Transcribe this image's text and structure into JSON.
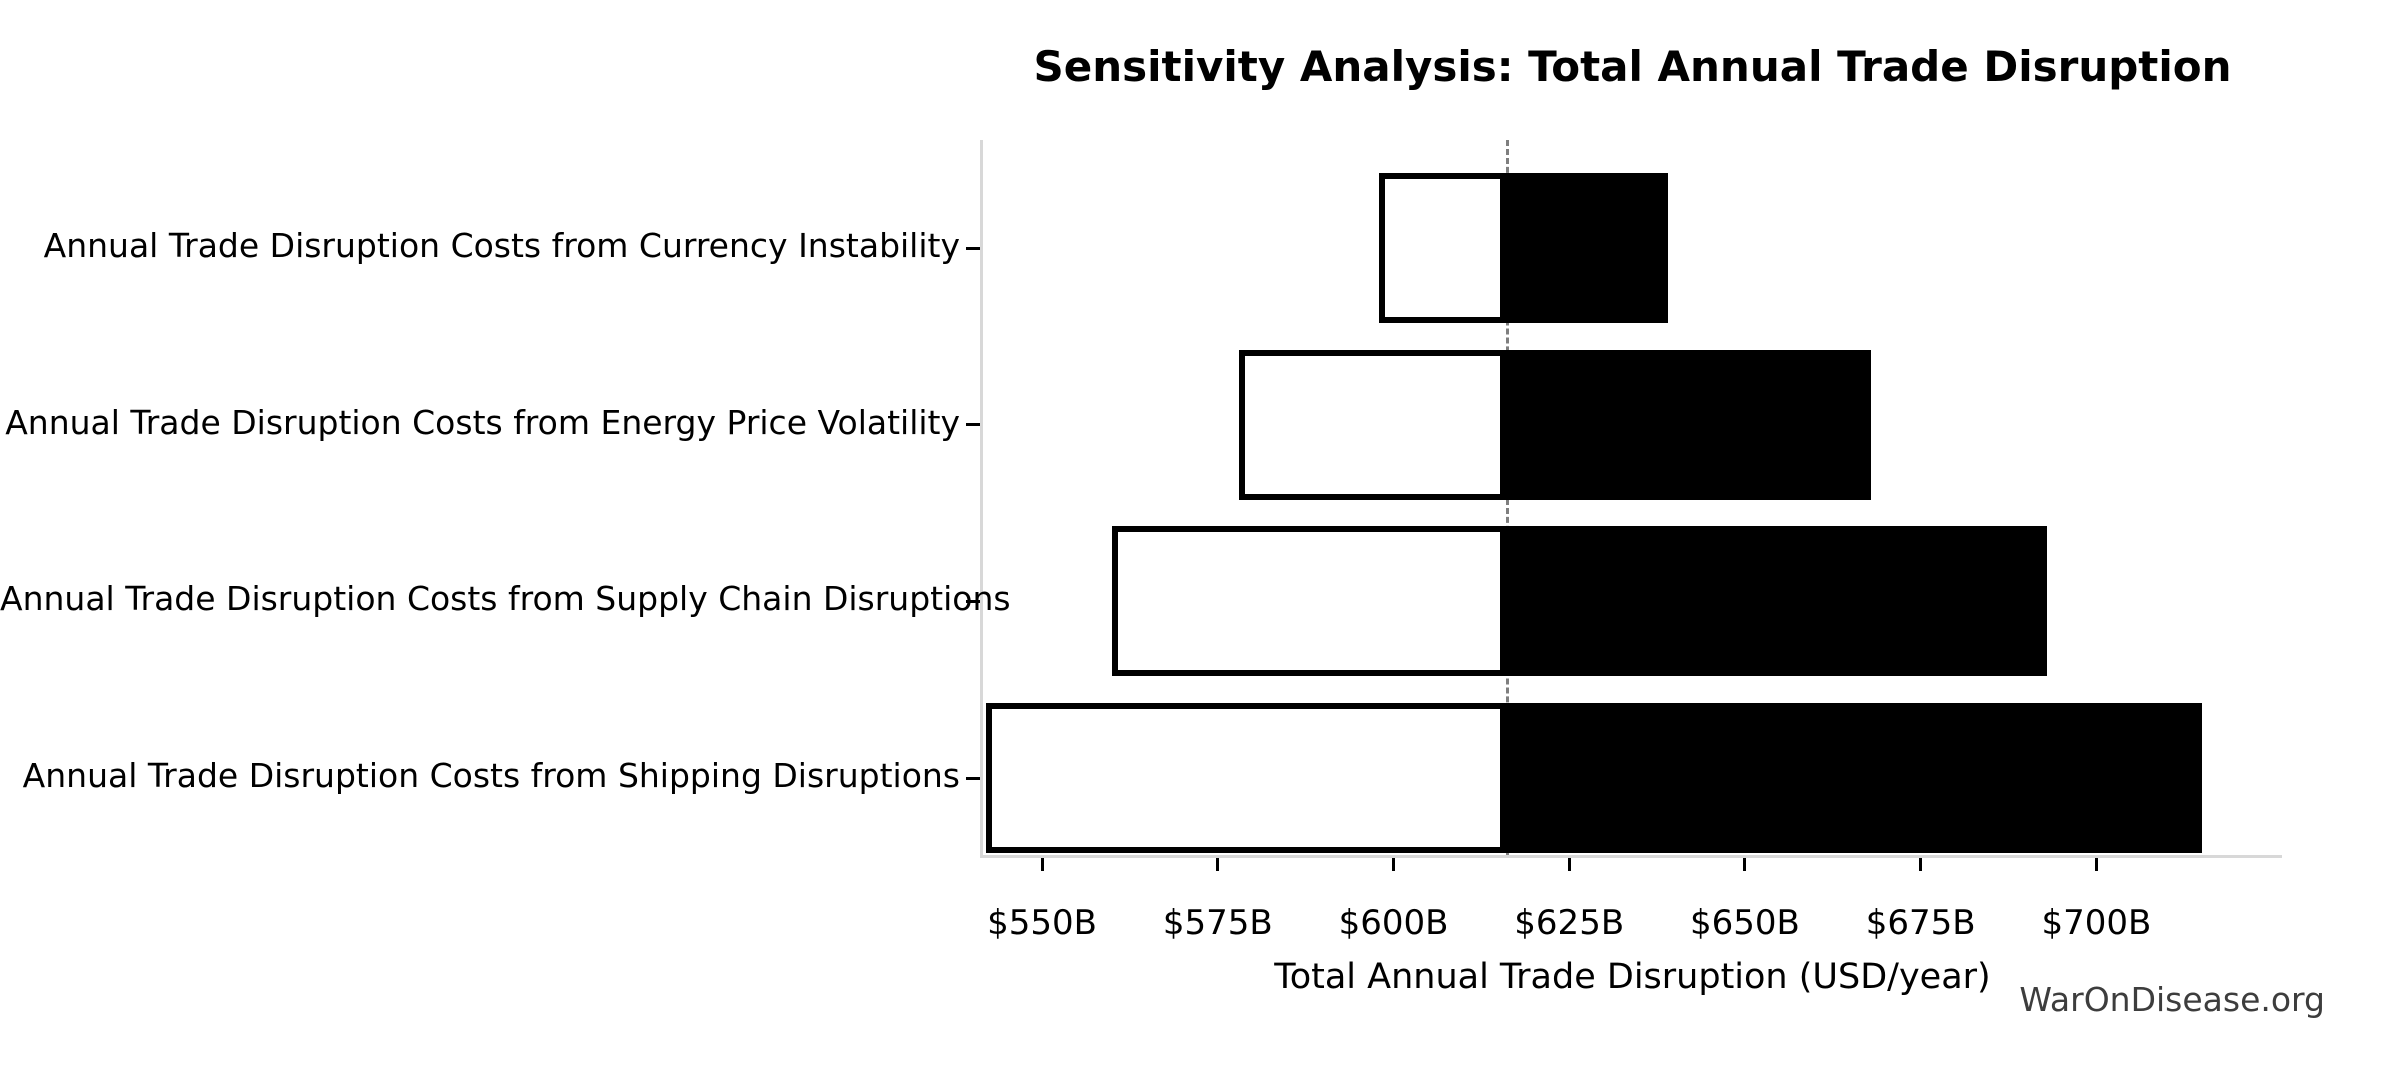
{
  "watermark": {
    "text": "WarOnDisease.org",
    "color": "#3d3d3d"
  },
  "chart_data": {
    "type": "bar",
    "subtype": "tornado-sensitivity",
    "title": "Sensitivity Analysis: Total Annual Trade Disruption",
    "xlabel": "Total Annual Trade Disruption (USD/year)",
    "ylabel": "",
    "unit": "USD billions per year",
    "categories": [
      "Annual Trade Disruption Costs from Currency Instability",
      "Annual Trade Disruption Costs from Energy Price Volatility",
      "Annual Trade Disruption Costs from Supply Chain Disruptions",
      "Annual Trade Disruption Costs from Shipping Disruptions"
    ],
    "series": [
      {
        "name": "low",
        "values": [
          598,
          578,
          560,
          542
        ],
        "fill": "#ffffff",
        "edge": "#000000"
      },
      {
        "name": "high",
        "values": [
          639,
          668,
          693,
          715
        ],
        "fill": "#000000",
        "edge": "#000000"
      }
    ],
    "baseline": 616,
    "x_ticks": [
      550,
      575,
      600,
      625,
      650,
      675,
      700
    ],
    "x_tick_labels": [
      "$550B",
      "$575B",
      "$600B",
      "$625B",
      "$650B",
      "$675B",
      "$700B"
    ],
    "xlim": [
      541.6,
      726.4
    ],
    "grid": false,
    "legend": false,
    "baseline_color": "#7f7f7f",
    "spine_color": "#d8d8d8"
  }
}
